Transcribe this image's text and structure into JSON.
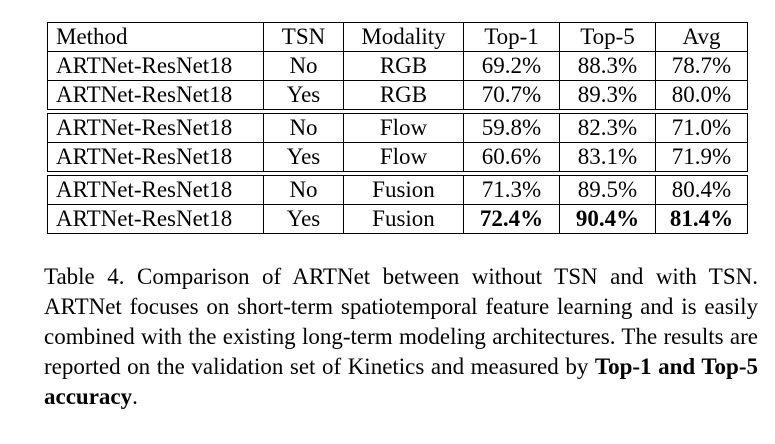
{
  "table": {
    "headers": [
      "Method",
      "TSN",
      "Modality",
      "Top-1",
      "Top-5",
      "Avg"
    ],
    "groups": [
      [
        {
          "method": "ARTNet-ResNet18",
          "tsn": "No",
          "modality": "RGB",
          "top1": "69.2%",
          "top5": "88.3%",
          "avg": "78.7%"
        },
        {
          "method": "ARTNet-ResNet18",
          "tsn": "Yes",
          "modality": "RGB",
          "top1": "70.7%",
          "top5": "89.3%",
          "avg": "80.0%"
        }
      ],
      [
        {
          "method": "ARTNet-ResNet18",
          "tsn": "No",
          "modality": "Flow",
          "top1": "59.8%",
          "top5": "82.3%",
          "avg": "71.0%"
        },
        {
          "method": "ARTNet-ResNet18",
          "tsn": "Yes",
          "modality": "Flow",
          "top1": "60.6%",
          "top5": "83.1%",
          "avg": "71.9%"
        }
      ],
      [
        {
          "method": "ARTNet-ResNet18",
          "tsn": "No",
          "modality": "Fusion",
          "top1": "71.3%",
          "top5": "89.5%",
          "avg": "80.4%"
        },
        {
          "method": "ARTNet-ResNet18",
          "tsn": "Yes",
          "modality": "Fusion",
          "top1": "72.4%",
          "top5": "90.4%",
          "avg": "81.4%",
          "bold": true
        }
      ]
    ]
  },
  "caption": {
    "prefix": "Table 4. Comparison of ARTNet between without TSN and with TSN. ARTNet focuses on short-term spatiotemporal feature learning and is easily combined with the existing long-term modeling architectures. The results are reported on the validation set of Kinetics and measured by ",
    "bold": "Top-1 and Top-5 accuracy",
    "suffix": "."
  }
}
